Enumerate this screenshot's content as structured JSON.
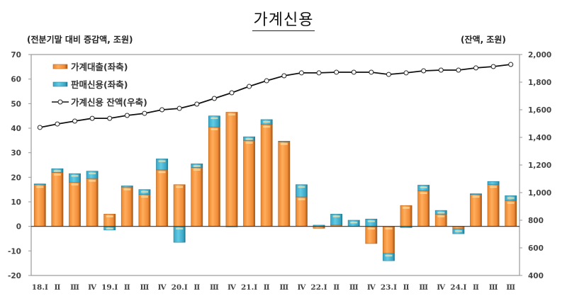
{
  "title": "가계신용",
  "units": {
    "left": "(전분기말 대비 증감액, 조원)",
    "right": "(잔액, 조원)"
  },
  "colors": {
    "loan": "#f79a45",
    "loan_dark": "#b8651f",
    "sales": "#4bb8d6",
    "sales_dark": "#2a7f99",
    "line": "#111111"
  },
  "legend": [
    {
      "label": "가계대출(좌축)",
      "type": "bar",
      "color": "#f79a45"
    },
    {
      "label": "판매신용(좌축)",
      "type": "bar",
      "color": "#4bb8d6"
    },
    {
      "label": "가계신용 잔액(우축)",
      "type": "line",
      "color": "#111111"
    }
  ],
  "chart_data": {
    "type": "bar+line",
    "title": "가계신용",
    "ylabel_left": "(전분기말 대비 증감액, 조원)",
    "ylabel_right": "(잔액, 조원)",
    "ylim_left": [
      -20,
      70
    ],
    "yticks_left": [
      -20,
      -10,
      0,
      10,
      20,
      30,
      40,
      50,
      60,
      70
    ],
    "ylim_right": [
      400,
      2000
    ],
    "yticks_right": [
      "400",
      "600",
      "800",
      "1,000",
      "1,200",
      "1,400",
      "1,600",
      "1,800",
      "2,000"
    ],
    "legend_position": "upper-left inside",
    "grid": false,
    "categories": [
      "18.Ⅰ",
      "Ⅱ",
      "Ⅲ",
      "Ⅳ",
      "19.Ⅰ",
      "Ⅱ",
      "Ⅲ",
      "Ⅳ",
      "20.Ⅰ",
      "Ⅱ",
      "Ⅲ",
      "Ⅳ",
      "21.Ⅰ",
      "Ⅱ",
      "Ⅲ",
      "Ⅳ",
      "22.Ⅰ",
      "Ⅱ",
      "Ⅲ",
      "Ⅳ",
      "23.Ⅰ",
      "Ⅱ",
      "Ⅲ",
      "Ⅳ",
      "24.Ⅰ",
      "Ⅱ",
      "Ⅲ",
      "Ⅲ"
    ],
    "series": [
      {
        "name": "가계대출(좌축)",
        "axis": "left",
        "type": "stacked-bar",
        "values": [
          17,
          22,
          18,
          19.5,
          5,
          16,
          13,
          23,
          17,
          24,
          40.5,
          46.5,
          35,
          41.5,
          34.5,
          12,
          -0.8,
          0.5,
          0,
          -7,
          -11,
          8.5,
          14.5,
          5,
          -1,
          13,
          17,
          10.5
        ]
      },
      {
        "name": "판매신용(좌축)",
        "axis": "left",
        "type": "stacked-bar",
        "values": [
          0.3,
          1.5,
          3.5,
          3,
          -1.5,
          0.5,
          2,
          4.5,
          -6.5,
          1.5,
          4.5,
          -0.2,
          1.5,
          2,
          0.2,
          5,
          0.5,
          4.5,
          2.5,
          3,
          -3,
          -0.5,
          2.3,
          1.5,
          -2,
          0.3,
          1.3,
          2
        ]
      },
      {
        "name": "가계신용 잔액(우축)",
        "axis": "right",
        "type": "line",
        "values": [
          1472,
          1497,
          1518,
          1538,
          1538,
          1559,
          1574,
          1600,
          1610,
          1641,
          1682,
          1723,
          1769,
          1810,
          1846,
          1867,
          1867,
          1872,
          1872,
          1872,
          1856,
          1867,
          1882,
          1887,
          1887,
          1903,
          1913,
          1928
        ]
      }
    ]
  }
}
